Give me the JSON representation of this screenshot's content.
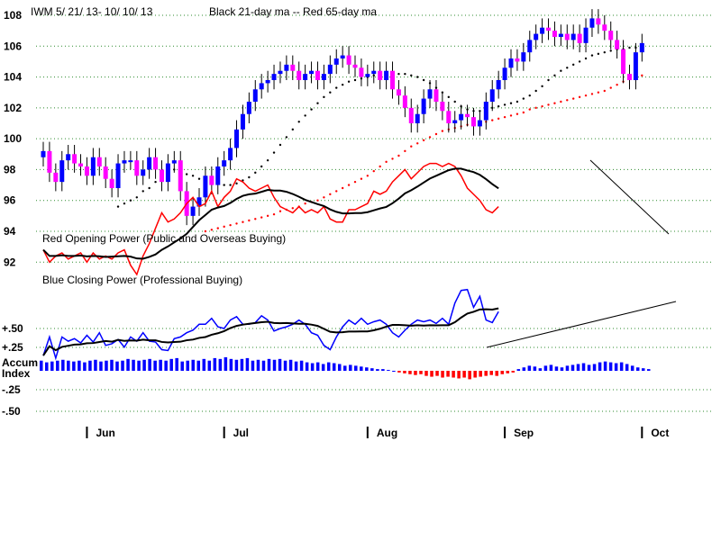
{
  "chart_data": {
    "type": "line",
    "title": "IWM  5/ 21/ 13- 10/ 10/ 13",
    "subtitle": "Black 21-day ma --  Red 65-day ma",
    "price_axis": {
      "ticks": [
        92,
        94,
        96,
        98,
        100,
        102,
        104,
        106,
        108
      ],
      "ylim": [
        91.5,
        108.4
      ]
    },
    "accum_axis": {
      "ticks": [
        "+.50",
        "+.25",
        "-.25",
        "-.50"
      ],
      "label_lines": [
        "Accum",
        "Index"
      ]
    },
    "months": [
      "Jun",
      "Jul",
      "Aug",
      "Sep",
      "Oct"
    ],
    "month_day_index": [
      7,
      29,
      52,
      74,
      96
    ],
    "opening_power_label": "Red Opening Power (Public and Overseas Buying)",
    "closing_power_label": "Blue Closing Power (Professional Buying)",
    "colors": {
      "up_candle": "#0000ff",
      "down_candle": "#ff00ff",
      "wick": "#000000",
      "ma21": "#000000",
      "ma65": "#ff0000",
      "opening_power": "#ff0000",
      "closing_power": "#0000ff",
      "accum_positive": "#0000ff",
      "accum_negative": "#ff0000",
      "grid": "#2e8b2e"
    },
    "closes": [
      99.2,
      97.8,
      97.2,
      98.6,
      99.0,
      98.4,
      98.2,
      97.6,
      98.8,
      98.2,
      97.4,
      96.8,
      98.4,
      98.6,
      98.6,
      97.6,
      98.0,
      98.8,
      98.0,
      97.2,
      98.4,
      98.6,
      96.6,
      95.0,
      95.6,
      96.2,
      97.6,
      97.0,
      98.2,
      98.6,
      99.4,
      100.6,
      101.6,
      102.4,
      103.2,
      103.6,
      103.8,
      104.2,
      104.4,
      104.8,
      104.4,
      103.8,
      104.2,
      104.4,
      103.8,
      104.2,
      104.8,
      105.2,
      105.4,
      104.8,
      104.6,
      104.0,
      104.2,
      104.4,
      103.8,
      104.4,
      103.2,
      102.8,
      102.0,
      101.0,
      101.6,
      102.6,
      103.2,
      102.4,
      101.8,
      101.0,
      101.2,
      101.6,
      101.4,
      100.8,
      101.2,
      102.4,
      103.2,
      103.8,
      104.6,
      105.2,
      105.0,
      105.6,
      106.4,
      106.8,
      107.2,
      107.0,
      106.6,
      106.8,
      106.4,
      106.8,
      106.2,
      107.2,
      107.8,
      107.4,
      107.0,
      106.4,
      105.8,
      104.2,
      103.8,
      105.6,
      106.2
    ],
    "ma21": [
      95.6,
      95.8,
      96.0,
      96.2,
      96.6,
      96.8,
      97.2,
      97.6,
      98.0,
      98.0,
      97.9,
      97.7,
      97.6,
      97.4,
      97.3,
      97.2,
      97.1,
      97.0,
      97.0,
      97.1,
      97.3,
      97.5,
      97.8,
      98.2,
      98.6,
      99.1,
      99.6,
      100.1,
      100.6,
      101.1,
      101.5,
      101.9,
      102.3,
      102.7,
      103.0,
      103.3,
      103.5,
      103.7,
      103.8,
      103.9,
      104.0,
      104.1,
      104.1,
      104.2,
      104.2,
      104.2,
      104.2,
      104.1,
      104.0,
      103.8,
      103.6,
      103.3,
      103.0,
      102.7,
      102.4,
      102.1,
      101.9,
      101.8,
      101.8,
      101.9,
      102.0,
      102.1,
      102.2,
      102.3,
      102.4,
      102.6,
      102.8,
      103.1,
      103.4,
      103.8,
      104.1,
      104.4,
      104.6,
      104.8,
      105.0,
      105.2,
      105.4,
      105.5,
      105.6,
      105.7,
      105.8,
      105.8,
      105.9,
      105.9,
      105.9
    ],
    "ma65": [
      94.0,
      94.1,
      94.2,
      94.3,
      94.4,
      94.5,
      94.6,
      94.7,
      94.8,
      94.9,
      95.0,
      95.1,
      95.3,
      95.4,
      95.5,
      95.6,
      95.8,
      95.9,
      96.0,
      96.2,
      96.4,
      96.6,
      96.8,
      97.0,
      97.2,
      97.4,
      97.6,
      97.9,
      98.2,
      98.5,
      98.7,
      98.9,
      99.2,
      99.5,
      99.7,
      99.9,
      100.1,
      100.3,
      100.5,
      100.6,
      100.7,
      100.8,
      100.9,
      101.0,
      101.0,
      101.1,
      101.2,
      101.3,
      101.4,
      101.5,
      101.6,
      101.7,
      101.9,
      102.0,
      102.1,
      102.2,
      102.3,
      102.4,
      102.5,
      102.6,
      102.7,
      102.8,
      102.9,
      103.0,
      103.1,
      103.3,
      103.5,
      103.7,
      103.9,
      104.0,
      104.1
    ],
    "opening_power": [
      92.8,
      92.0,
      92.4,
      92.6,
      92.2,
      92.4,
      92.6,
      92.0,
      92.6,
      92.2,
      92.4,
      92.2,
      92.6,
      92.8,
      91.8,
      91.2,
      92.4,
      93.2,
      94.2,
      95.2,
      94.6,
      94.8,
      95.2,
      95.8,
      96.2,
      95.6,
      95.8,
      96.6,
      95.6,
      96.2,
      96.6,
      97.4,
      97.2,
      96.8,
      96.6,
      96.8,
      97.0,
      96.2,
      95.6,
      95.4,
      95.2,
      95.6,
      95.2,
      95.4,
      95.2,
      95.6,
      94.8,
      94.6,
      94.6,
      95.4,
      95.4,
      95.6,
      95.8,
      96.6,
      96.4,
      96.6,
      97.2,
      97.6,
      98.0,
      97.4,
      97.8,
      98.2,
      98.4,
      98.4,
      98.2,
      98.4,
      98.2,
      97.6,
      96.8,
      96.4,
      96.0,
      95.4,
      95.2,
      95.6
    ],
    "closing_power": [
      0.18,
      0.4,
      0.15,
      0.4,
      0.35,
      0.38,
      0.33,
      0.42,
      0.34,
      0.45,
      0.3,
      0.32,
      0.37,
      0.28,
      0.4,
      0.35,
      0.45,
      0.35,
      0.34,
      0.25,
      0.24,
      0.38,
      0.4,
      0.45,
      0.48,
      0.55,
      0.55,
      0.62,
      0.52,
      0.5,
      0.6,
      0.64,
      0.55,
      0.55,
      0.57,
      0.65,
      0.6,
      0.47,
      0.5,
      0.52,
      0.55,
      0.6,
      0.55,
      0.45,
      0.42,
      0.3,
      0.25,
      0.4,
      0.52,
      0.6,
      0.55,
      0.62,
      0.55,
      0.58,
      0.6,
      0.55,
      0.45,
      0.4,
      0.48,
      0.55,
      0.6,
      0.58,
      0.6,
      0.56,
      0.62,
      0.55,
      0.8,
      0.95,
      0.96,
      0.75,
      0.88,
      0.6,
      0.57,
      0.7
    ],
    "accum_index": [
      0.12,
      0.1,
      0.11,
      0.12,
      0.13,
      0.12,
      0.11,
      0.12,
      0.1,
      0.12,
      0.13,
      0.11,
      0.12,
      0.13,
      0.11,
      0.12,
      0.14,
      0.13,
      0.12,
      0.13,
      0.14,
      0.12,
      0.13,
      0.12,
      0.14,
      0.15,
      0.11,
      0.12,
      0.13,
      0.12,
      0.14,
      0.12,
      0.15,
      0.14,
      0.16,
      0.14,
      0.13,
      0.14,
      0.15,
      0.12,
      0.13,
      0.12,
      0.14,
      0.13,
      0.14,
      0.12,
      0.13,
      0.11,
      0.12,
      0.1,
      0.09,
      0.1,
      0.08,
      0.1,
      0.09,
      0.08,
      0.06,
      0.07,
      0.06,
      0.05,
      0.04,
      0.03,
      0.02,
      0.02,
      0.01,
      0.0,
      -0.02,
      -0.03,
      -0.04,
      -0.05,
      -0.04,
      -0.06,
      -0.07,
      -0.06,
      -0.08,
      -0.07,
      -0.08,
      -0.09,
      -0.08,
      -0.1,
      -0.08,
      -0.07,
      -0.06,
      -0.05,
      -0.06,
      -0.04,
      -0.03,
      -0.02,
      0.02,
      0.04,
      0.06,
      0.05,
      0.03,
      0.06,
      0.07,
      0.05,
      0.04,
      0.06,
      0.07,
      0.08,
      0.09,
      0.07,
      0.08,
      0.1,
      0.11,
      0.1,
      0.09,
      0.1,
      0.08,
      0.06,
      0.04,
      0.03,
      0.02
    ]
  }
}
